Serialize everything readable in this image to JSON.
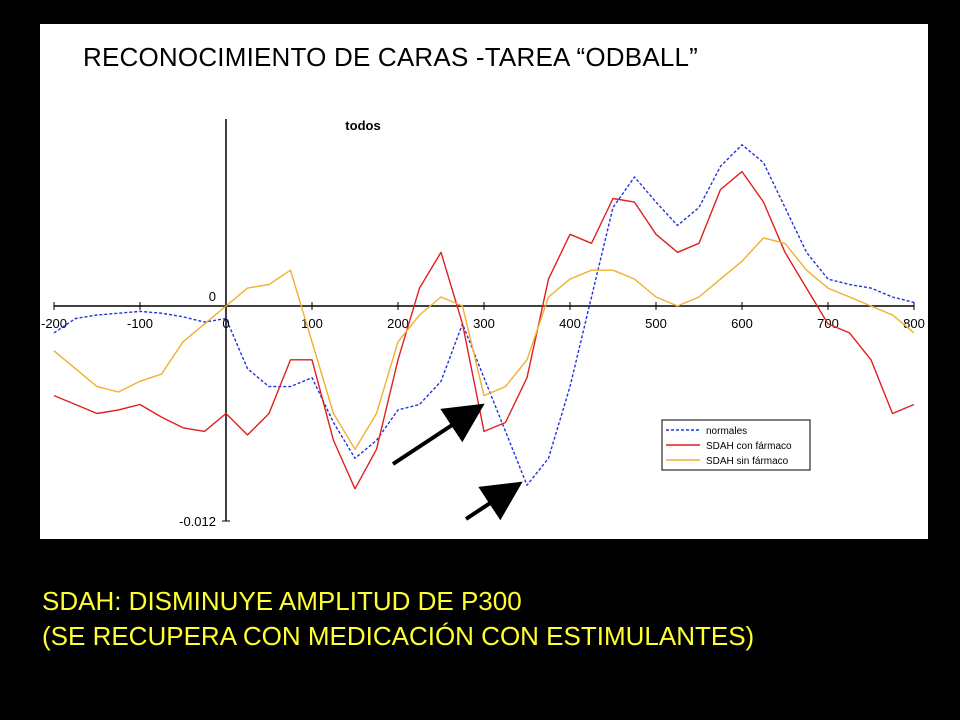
{
  "slide": {
    "title": "RECONOCIMIENTO DE CARAS -TAREA “ODBALL”",
    "caption_line1": "SDAH: DISMINUYE AMPLITUD DE P300",
    "caption_line2": "(SE RECUPERA CON MEDICACIÓN CON ESTIMULANTES)"
  },
  "colors": {
    "background": "#000000",
    "panel": "#ffffff",
    "caption": "#ffff33",
    "normales": "#2233dd",
    "con_farmaco": "#e02020",
    "sin_farmaco": "#f0b030"
  },
  "chart_data": {
    "type": "line",
    "title": "todos",
    "xlabel": "",
    "ylabel": "",
    "xlim": [
      -200,
      800
    ],
    "ylim": [
      -0.012,
      0.0105
    ],
    "x_ticks": [
      "-200",
      "-100",
      "0",
      "100",
      "200",
      "300",
      "400",
      "500",
      "600",
      "700",
      "800"
    ],
    "x_tick_values": [
      -200,
      -100,
      0,
      100,
      200,
      300,
      400,
      500,
      600,
      700,
      800
    ],
    "y_ticks": [
      "0",
      "-0.012"
    ],
    "y_tick_values": [
      0,
      -0.012
    ],
    "grid": false,
    "legend_position": "bottom-right",
    "annotations": [
      "arrow pointing to sin fármaco trough near 300 ms",
      "arrow pointing to normales trough near 350 ms"
    ],
    "x": [
      -200,
      -175,
      -150,
      -125,
      -100,
      -75,
      -50,
      -25,
      0,
      25,
      50,
      75,
      100,
      125,
      150,
      175,
      200,
      225,
      250,
      275,
      300,
      325,
      350,
      375,
      400,
      425,
      450,
      475,
      500,
      525,
      550,
      575,
      600,
      625,
      650,
      675,
      700,
      725,
      750,
      775,
      800
    ],
    "series": [
      {
        "name": "normales",
        "style": "dashed",
        "values": [
          -0.0015,
          -0.0007,
          -0.0005,
          -0.0004,
          -0.0003,
          -0.0004,
          -0.0006,
          -0.0009,
          -0.0007,
          -0.0035,
          -0.0045,
          -0.0045,
          -0.004,
          -0.0065,
          -0.0085,
          -0.0075,
          -0.0058,
          -0.0055,
          -0.0042,
          -0.001,
          -0.004,
          -0.007,
          -0.01,
          -0.0085,
          -0.0045,
          0.0005,
          0.0055,
          0.0072,
          0.0058,
          0.0045,
          0.0055,
          0.0078,
          0.009,
          0.008,
          0.0055,
          0.003,
          0.0015,
          0.0012,
          0.001,
          0.0005,
          0.0002
        ]
      },
      {
        "name": "SDAH con fármaco",
        "values": [
          -0.005,
          -0.0055,
          -0.006,
          -0.0058,
          -0.0055,
          -0.0062,
          -0.0068,
          -0.007,
          -0.006,
          -0.0072,
          -0.006,
          -0.003,
          -0.003,
          -0.0075,
          -0.0102,
          -0.008,
          -0.003,
          0.001,
          0.003,
          -0.001,
          -0.007,
          -0.0065,
          -0.004,
          0.0015,
          0.004,
          0.0035,
          0.006,
          0.0058,
          0.004,
          0.003,
          0.0035,
          0.0065,
          0.0075,
          0.0058,
          0.003,
          0.001,
          -0.001,
          -0.0015,
          -0.003,
          -0.006,
          -0.0055
        ]
      },
      {
        "name": "SDAH sin fármaco",
        "values": [
          -0.0025,
          -0.0035,
          -0.0045,
          -0.0048,
          -0.0042,
          -0.0038,
          -0.002,
          -0.001,
          0.0,
          0.001,
          0.0012,
          0.002,
          -0.002,
          -0.006,
          -0.008,
          -0.006,
          -0.002,
          -0.0005,
          0.0005,
          0.0,
          -0.005,
          -0.0045,
          -0.003,
          0.0005,
          0.0015,
          0.002,
          0.002,
          0.0015,
          0.0005,
          0.0,
          0.0005,
          0.0015,
          0.0025,
          0.0038,
          0.0035,
          0.002,
          0.001,
          0.0005,
          0.0,
          -0.0005,
          -0.0015
        ]
      }
    ]
  }
}
